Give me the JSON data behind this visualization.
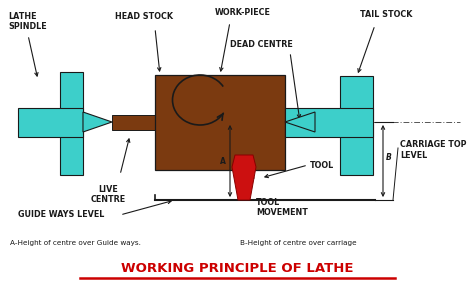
{
  "bg_color": "#ffffff",
  "teal_color": "#3dcfca",
  "brown_color": "#7B3A10",
  "red_color": "#cc1010",
  "line_color": "#1a1a1a",
  "title": "WORKING PRINCIPLE OF LATHE",
  "title_color": "#cc0000",
  "subtitle_a": "A-Height of centre over Guide ways.",
  "subtitle_b": "B-Height of centre over carriage",
  "labels": {
    "lathe_spindle": "LATHE\nSPINDLE",
    "head_stock": "HEAD STOCK",
    "work_piece": "WORK-PIECE",
    "dead_centre": "DEAD CENTRE",
    "tail_stock": "TAIL STOCK",
    "live_centre": "LIVE\nCENTRE",
    "guide_ways": "GUIDE WAYS LEVEL",
    "tool": "TOOL",
    "tool_movement": "TOOL\nMOVEMENT",
    "carriage_top": "CARRIAGE TOP\nLEVEL"
  },
  "xlim": [
    0,
    474
  ],
  "ylim": [
    0,
    297
  ]
}
